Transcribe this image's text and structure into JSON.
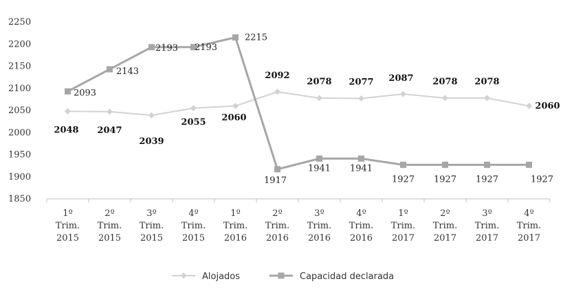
{
  "chart_data": {
    "type": "line",
    "categories": [
      [
        "1º",
        "Trim.",
        "2015"
      ],
      [
        "2º",
        "Trim.",
        "2015"
      ],
      [
        "3º",
        "Trim.",
        "2015"
      ],
      [
        "4º",
        "Trim.",
        "2015"
      ],
      [
        "1º",
        "Trim.",
        "2016"
      ],
      [
        "2º",
        "Trim.",
        "2016"
      ],
      [
        "3º",
        "Trim.",
        "2016"
      ],
      [
        "4º",
        "Trim.",
        "2016"
      ],
      [
        "1º",
        "Trim.",
        "2017"
      ],
      [
        "2º",
        "Trim.",
        "2017"
      ],
      [
        "3º",
        "Trim.",
        "2017"
      ],
      [
        "4º",
        "Trim.",
        "2017"
      ]
    ],
    "series": [
      {
        "name": "Alojados",
        "color": "#d2d2d2",
        "marker": "diamond",
        "values": [
          2048,
          2047,
          2039,
          2055,
          2060,
          2092,
          2078,
          2077,
          2087,
          2078,
          2078,
          2060
        ]
      },
      {
        "name": "Capacidad declarada",
        "color": "#a6a6a6",
        "marker": "square",
        "values": [
          2093,
          2143,
          2193,
          2193,
          2215,
          1917,
          1941,
          1941,
          1927,
          1927,
          1927,
          1927
        ]
      }
    ],
    "ylim": [
      1850,
      2250
    ],
    "yticks": [
      1850,
      1900,
      1950,
      2000,
      2050,
      2100,
      2150,
      2200,
      2250
    ],
    "grid": false,
    "legend_position": "bottom",
    "title": "",
    "xlabel": "",
    "ylabel": ""
  }
}
